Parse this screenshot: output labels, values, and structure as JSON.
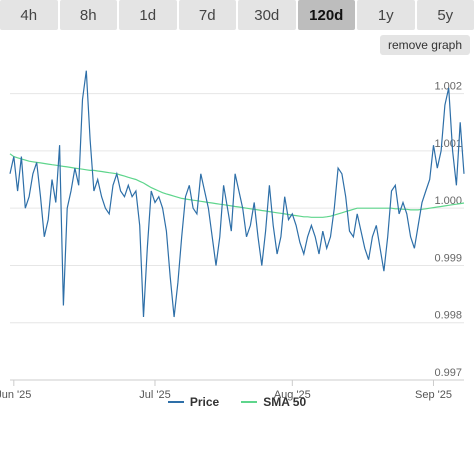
{
  "tabs": [
    {
      "label": "4h",
      "active": false
    },
    {
      "label": "8h",
      "active": false
    },
    {
      "label": "1d",
      "active": false
    },
    {
      "label": "7d",
      "active": false
    },
    {
      "label": "30d",
      "active": false
    },
    {
      "label": "120d",
      "active": true
    },
    {
      "label": "1y",
      "active": false
    },
    {
      "label": "5y",
      "active": false
    }
  ],
  "remove_graph_label": "remove graph",
  "colors": {
    "price": "#2e6fa8",
    "sma": "#5ed58c",
    "grid": "#e6e6e6"
  },
  "chart_data": {
    "type": "line",
    "x_tick_labels": [
      "Jun '25",
      "Jul '25",
      "Aug '25",
      "Sep '25"
    ],
    "y_ticks": [
      "0.997",
      "0.998",
      "0.999",
      "1.000",
      "1.001",
      "1.002"
    ],
    "ylim": [
      0.997,
      1.0025
    ],
    "grid": true,
    "legend_position": "bottom",
    "series": [
      {
        "name": "Price",
        "values": [
          1.0006,
          1.0009,
          1.0003,
          1.0009,
          1.0,
          1.0002,
          1.0006,
          1.0008,
          1.0002,
          0.9995,
          0.9998,
          1.0005,
          1.0001,
          1.0011,
          0.9983,
          1.0,
          1.0003,
          1.0007,
          1.0004,
          1.0019,
          1.0024,
          1.0012,
          1.0003,
          1.0005,
          1.0002,
          1.0,
          0.9999,
          1.0004,
          1.0006,
          1.0003,
          1.0002,
          1.0004,
          1.0002,
          1.0003,
          0.9997,
          0.9981,
          0.9993,
          1.0003,
          1.0001,
          1.0002,
          1.0,
          0.9996,
          0.9988,
          0.9981,
          0.9987,
          0.9995,
          1.0002,
          1.0004,
          1.0,
          0.9999,
          1.0006,
          1.0003,
          1.0,
          0.9995,
          0.999,
          0.9995,
          1.0004,
          1.0,
          0.9996,
          1.0006,
          1.0003,
          1.0,
          0.9995,
          0.9997,
          1.0001,
          0.9995,
          0.999,
          0.9996,
          1.0004,
          0.9997,
          0.9992,
          0.9995,
          1.0002,
          0.9998,
          0.9999,
          0.9997,
          0.9994,
          0.9992,
          0.9995,
          0.9997,
          0.9995,
          0.9992,
          0.9996,
          0.9993,
          0.9995,
          1.0,
          1.0007,
          1.0006,
          1.0002,
          0.9996,
          0.9995,
          0.9999,
          0.9996,
          0.9993,
          0.9991,
          0.9995,
          0.9997,
          0.9993,
          0.9989,
          0.9995,
          1.0003,
          1.0004,
          0.9999,
          1.0001,
          0.9999,
          0.9995,
          0.9993,
          0.9997,
          1.0001,
          1.0003,
          1.0005,
          1.0011,
          1.0007,
          1.001,
          1.0018,
          1.0021,
          1.001,
          1.0004,
          1.0015,
          1.0006
        ]
      },
      {
        "name": "SMA 50",
        "values": [
          1.00095,
          1.0009,
          1.00088,
          1.00086,
          1.00084,
          1.00082,
          1.00081,
          1.0008,
          1.00079,
          1.00078,
          1.00077,
          1.00076,
          1.00075,
          1.00074,
          1.00073,
          1.00072,
          1.00071,
          1.0007,
          1.00069,
          1.00068,
          1.00067,
          1.00066,
          1.00066,
          1.00065,
          1.00064,
          1.00063,
          1.00062,
          1.00061,
          1.0006,
          1.00058,
          1.00056,
          1.00054,
          1.00052,
          1.0005,
          1.00047,
          1.00044,
          1.0004,
          1.00036,
          1.00033,
          1.0003,
          1.00027,
          1.00025,
          1.00023,
          1.00021,
          1.00019,
          1.00017,
          1.00016,
          1.00015,
          1.00014,
          1.00013,
          1.00012,
          1.00011,
          1.0001,
          1.00009,
          1.00008,
          1.00007,
          1.00006,
          1.00005,
          1.00004,
          1.00003,
          1.00002,
          1.00001,
          1.0,
          0.99999,
          0.99998,
          0.99997,
          0.99996,
          0.99995,
          0.99994,
          0.99993,
          0.99992,
          0.99991,
          0.9999,
          0.99989,
          0.99988,
          0.99987,
          0.99986,
          0.99985,
          0.99985,
          0.99984,
          0.99984,
          0.99984,
          0.99984,
          0.99985,
          0.99986,
          0.99988,
          0.9999,
          0.99992,
          0.99994,
          0.99996,
          0.99998,
          1.0,
          1.0,
          1.0,
          1.0,
          1.0,
          1.0,
          1.0,
          1.0,
          1.0,
          1.0,
          0.99999,
          0.99999,
          0.99998,
          0.99998,
          0.99997,
          0.99997,
          0.99997,
          0.99998,
          0.99999,
          1.0,
          1.00001,
          1.00002,
          1.00003,
          1.00004,
          1.00005,
          1.00006,
          1.00007,
          1.00008,
          1.00009
        ]
      }
    ]
  }
}
